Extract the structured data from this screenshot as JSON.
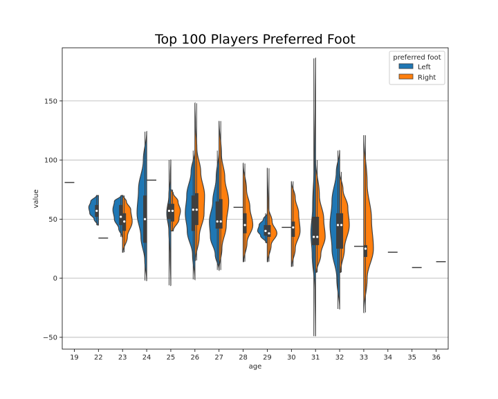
{
  "chart_data": {
    "type": "violin",
    "title": "Top 100 Players Preferred Foot",
    "xlabel": "age",
    "ylabel": "value",
    "categories": [
      "19",
      "22",
      "23",
      "24",
      "25",
      "26",
      "27",
      "28",
      "29",
      "30",
      "31",
      "32",
      "33",
      "34",
      "35",
      "36"
    ],
    "ylim": [
      -60,
      195
    ],
    "yticks": [
      -50,
      0,
      50,
      100,
      150
    ],
    "grid": "horizontal",
    "legend": {
      "title": "preferred foot",
      "position": "top-right",
      "entries": [
        {
          "name": "Left",
          "color": "#1f77b4"
        },
        {
          "name": "Right",
          "color": "#ff7f0e"
        }
      ]
    },
    "series": [
      {
        "name": "Left",
        "color": "#1f77b4",
        "violins": [
          {
            "category": "19",
            "single": 81
          },
          {
            "category": "22",
            "min": 45,
            "max": 70,
            "median": 57,
            "q1": 52,
            "q3": 62,
            "profile": [
              [
                45,
                0.1
              ],
              [
                50,
                0.45
              ],
              [
                55,
                0.9
              ],
              [
                60,
                1.0
              ],
              [
                65,
                0.8
              ],
              [
                70,
                0.2
              ]
            ]
          },
          {
            "category": "23",
            "min": 35,
            "max": 70,
            "median": 52,
            "q1": 45,
            "q3": 62,
            "profile": [
              [
                35,
                0.05
              ],
              [
                42,
                0.4
              ],
              [
                50,
                0.85
              ],
              [
                58,
                1.0
              ],
              [
                65,
                0.85
              ],
              [
                70,
                0.15
              ]
            ]
          },
          {
            "category": "24",
            "min": -2,
            "max": 124,
            "median": 50,
            "q1": 30,
            "q3": 70,
            "profile": [
              [
                -2,
                0.0
              ],
              [
                15,
                0.2
              ],
              [
                35,
                0.6
              ],
              [
                55,
                1.0
              ],
              [
                75,
                0.85
              ],
              [
                100,
                0.35
              ],
              [
                124,
                0.0
              ]
            ]
          },
          {
            "category": "25",
            "min": -6,
            "max": 100,
            "median": 57,
            "q1": 50,
            "q3": 63,
            "profile": [
              [
                -6,
                0.0
              ],
              [
                20,
                0.08
              ],
              [
                40,
                0.2
              ],
              [
                55,
                0.42
              ],
              [
                70,
                0.2
              ],
              [
                85,
                0.06
              ],
              [
                100,
                0.0
              ]
            ]
          },
          {
            "category": "26",
            "min": -1,
            "max": 108,
            "median": 58,
            "q1": 40,
            "q3": 70,
            "profile": [
              [
                -1,
                0.0
              ],
              [
                20,
                0.25
              ],
              [
                40,
                0.8
              ],
              [
                55,
                1.0
              ],
              [
                70,
                0.85
              ],
              [
                90,
                0.4
              ],
              [
                108,
                0.0
              ]
            ]
          },
          {
            "category": "27",
            "min": 7,
            "max": 108,
            "median": 48,
            "q1": 42,
            "q3": 65,
            "profile": [
              [
                7,
                0.0
              ],
              [
                20,
                0.4
              ],
              [
                35,
                0.9
              ],
              [
                48,
                1.0
              ],
              [
                65,
                0.65
              ],
              [
                85,
                0.3
              ],
              [
                108,
                0.0
              ]
            ]
          },
          {
            "category": "28",
            "single": 60
          },
          {
            "category": "29",
            "min": 30,
            "max": 55,
            "median": 40,
            "q1": 36,
            "q3": 45,
            "profile": [
              [
                30,
                0.1
              ],
              [
                36,
                0.7
              ],
              [
                40,
                1.0
              ],
              [
                45,
                0.85
              ],
              [
                50,
                0.4
              ],
              [
                55,
                0.0
              ]
            ]
          },
          {
            "category": "30",
            "single": 43
          },
          {
            "category": "31",
            "min": -49,
            "max": 186,
            "median": 35,
            "q1": 28,
            "q3": 52,
            "profile": [
              [
                -49,
                0.0
              ],
              [
                -10,
                0.06
              ],
              [
                20,
                0.35
              ],
              [
                38,
                0.48
              ],
              [
                60,
                0.3
              ],
              [
                100,
                0.12
              ],
              [
                150,
                0.04
              ],
              [
                186,
                0.0
              ]
            ]
          },
          {
            "category": "32",
            "min": -26,
            "max": 108,
            "median": 45,
            "q1": 25,
            "q3": 55,
            "profile": [
              [
                -26,
                0.0
              ],
              [
                0,
                0.3
              ],
              [
                25,
                0.8
              ],
              [
                45,
                1.0
              ],
              [
                65,
                0.8
              ],
              [
                90,
                0.35
              ],
              [
                108,
                0.0
              ]
            ]
          },
          {
            "category": "33",
            "single": 27
          }
        ]
      },
      {
        "name": "Right",
        "color": "#ff7f0e",
        "violins": [
          {
            "category": "22",
            "single": 34
          },
          {
            "category": "23",
            "min": 22,
            "max": 70,
            "median": 48,
            "q1": 40,
            "q3": 55,
            "profile": [
              [
                22,
                0.05
              ],
              [
                35,
                0.5
              ],
              [
                48,
                1.0
              ],
              [
                58,
                0.85
              ],
              [
                65,
                0.4
              ],
              [
                70,
                0.05
              ]
            ]
          },
          {
            "category": "24",
            "single": 83
          },
          {
            "category": "25",
            "min": 40,
            "max": 75,
            "median": 57,
            "q1": 48,
            "q3": 63,
            "profile": [
              [
                40,
                0.25
              ],
              [
                50,
                0.85
              ],
              [
                57,
                1.0
              ],
              [
                65,
                0.75
              ],
              [
                72,
                0.25
              ],
              [
                75,
                0.05
              ]
            ]
          },
          {
            "category": "26",
            "min": 15,
            "max": 148,
            "median": 58,
            "q1": 45,
            "q3": 72,
            "profile": [
              [
                15,
                0.05
              ],
              [
                35,
                0.45
              ],
              [
                55,
                0.95
              ],
              [
                70,
                1.0
              ],
              [
                90,
                0.6
              ],
              [
                110,
                0.2
              ],
              [
                130,
                0.06
              ],
              [
                148,
                0.0
              ]
            ]
          },
          {
            "category": "27",
            "min": 7,
            "max": 133,
            "median": 48,
            "q1": 42,
            "q3": 67,
            "profile": [
              [
                7,
                0.0
              ],
              [
                25,
                0.3
              ],
              [
                45,
                0.75
              ],
              [
                65,
                1.0
              ],
              [
                85,
                0.6
              ],
              [
                105,
                0.25
              ],
              [
                133,
                0.0
              ]
            ]
          },
          {
            "category": "28",
            "min": 14,
            "max": 97,
            "median": 45,
            "q1": 38,
            "q3": 55,
            "profile": [
              [
                14,
                0.05
              ],
              [
                30,
                0.4
              ],
              [
                45,
                1.0
              ],
              [
                60,
                0.7
              ],
              [
                75,
                0.35
              ],
              [
                97,
                0.0
              ]
            ]
          },
          {
            "category": "29",
            "min": 14,
            "max": 93,
            "median": 38,
            "q1": 35,
            "q3": 45,
            "profile": [
              [
                14,
                0.05
              ],
              [
                28,
                0.4
              ],
              [
                38,
                1.0
              ],
              [
                48,
                0.5
              ],
              [
                60,
                0.12
              ],
              [
                93,
                0.0
              ]
            ]
          },
          {
            "category": "30",
            "min": 10,
            "max": 82,
            "median": 43,
            "q1": 35,
            "q3": 48,
            "profile": [
              [
                10,
                0.05
              ],
              [
                25,
                0.4
              ],
              [
                40,
                0.9
              ],
              [
                55,
                0.75
              ],
              [
                68,
                0.4
              ],
              [
                82,
                0.0
              ]
            ]
          },
          {
            "category": "31",
            "min": 5,
            "max": 100,
            "median": 35,
            "q1": 28,
            "q3": 52,
            "profile": [
              [
                5,
                0.1
              ],
              [
                20,
                0.55
              ],
              [
                35,
                1.0
              ],
              [
                50,
                0.85
              ],
              [
                70,
                0.4
              ],
              [
                100,
                0.0
              ]
            ]
          },
          {
            "category": "32",
            "min": 5,
            "max": 90,
            "median": 45,
            "q1": 25,
            "q3": 55,
            "profile": [
              [
                5,
                0.1
              ],
              [
                25,
                0.5
              ],
              [
                45,
                1.0
              ],
              [
                60,
                0.85
              ],
              [
                75,
                0.35
              ],
              [
                90,
                0.0
              ]
            ]
          },
          {
            "category": "33",
            "min": -29,
            "max": 121,
            "median": 25,
            "q1": 18,
            "q3": 28,
            "profile": [
              [
                -29,
                0.0
              ],
              [
                0,
                0.35
              ],
              [
                25,
                1.0
              ],
              [
                50,
                0.8
              ],
              [
                80,
                0.35
              ],
              [
                121,
                0.0
              ]
            ]
          },
          {
            "category": "34",
            "single": 22
          },
          {
            "category": "35",
            "single": 9
          },
          {
            "category": "36",
            "single": 14
          }
        ]
      }
    ]
  }
}
